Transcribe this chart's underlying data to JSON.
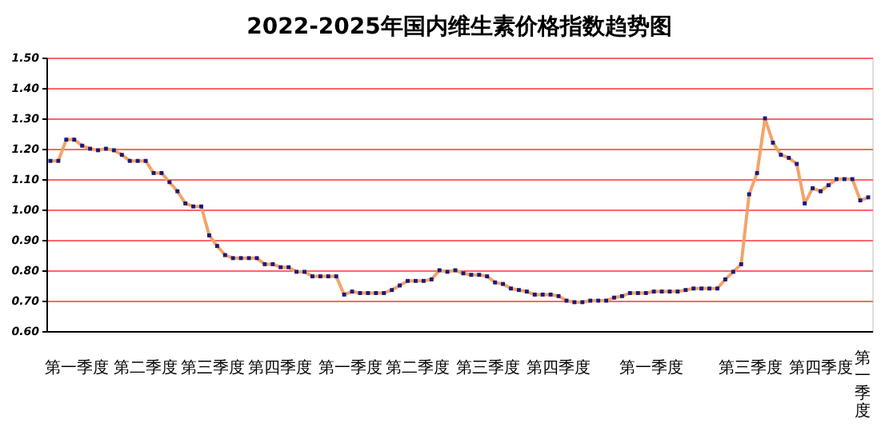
{
  "chart_data": {
    "type": "line",
    "title": "2022-2025年国内维生素价格指数趋势图",
    "categories": [
      null,
      null,
      null,
      null,
      null,
      null,
      null,
      null,
      null,
      null,
      null,
      null,
      null,
      null,
      null,
      null,
      null,
      null,
      null,
      null,
      null,
      null,
      null,
      null,
      null,
      null,
      null,
      null,
      null,
      null,
      null,
      null,
      null,
      null,
      null,
      null,
      null,
      null,
      null,
      null,
      null,
      null,
      null,
      null,
      null,
      null,
      null,
      null,
      null,
      null,
      null,
      null,
      null,
      null,
      null,
      null,
      null,
      null,
      null,
      null,
      null,
      null,
      null,
      null,
      null,
      null,
      null,
      null,
      null,
      null,
      null,
      null,
      null,
      null,
      null,
      null,
      null,
      null,
      null,
      null,
      null,
      null,
      null,
      null,
      null,
      null,
      null,
      null,
      null,
      null,
      null,
      null,
      null,
      null,
      null,
      null,
      null,
      null,
      null,
      null,
      null,
      null,
      null,
      null
    ],
    "series": [
      {
        "color": "#f4a46a",
        "values": [
          1.16,
          1.16,
          1.23,
          1.23,
          1.21,
          1.2,
          1.195,
          1.2,
          1.195,
          1.18,
          1.16,
          1.16,
          1.16,
          1.12,
          1.12,
          1.09,
          1.06,
          1.02,
          1.01,
          1.01,
          0.915,
          0.88,
          0.85,
          0.84,
          0.84,
          0.84,
          0.84,
          0.82,
          0.82,
          0.81,
          0.81,
          0.795,
          0.795,
          0.78,
          0.78,
          0.78,
          0.78,
          0.72,
          0.73,
          0.725,
          0.725,
          0.725,
          0.725,
          0.735,
          0.75,
          0.765,
          0.765,
          0.765,
          0.77,
          0.8,
          0.795,
          0.8,
          0.79,
          0.785,
          0.785,
          0.78,
          0.76,
          0.755,
          0.74,
          0.735,
          0.73,
          0.72,
          0.72,
          0.72,
          0.715,
          0.7,
          0.695,
          0.695,
          0.7,
          0.7,
          0.7,
          0.71,
          0.715,
          0.725,
          0.725,
          0.725,
          0.73,
          0.73,
          0.73,
          0.73,
          0.735,
          0.74,
          0.74,
          0.74,
          0.74,
          0.77,
          0.795,
          0.82,
          1.05,
          1.12,
          1.3,
          1.22,
          1.18,
          1.17,
          1.15,
          1.02,
          1.07,
          1.06,
          1.08,
          1.1,
          1.1,
          1.1,
          1.03,
          1.04
        ]
      }
    ],
    "marker": "square",
    "ylim": [
      0.6,
      1.5
    ],
    "yticks": [
      {
        "value": 0.6,
        "label": "0.60"
      },
      {
        "value": 0.7,
        "label": "0.70"
      },
      {
        "value": 0.8,
        "label": "0.80"
      },
      {
        "value": 0.9,
        "label": "0.90"
      },
      {
        "value": 1.0,
        "label": "1.00"
      },
      {
        "value": 1.1,
        "label": "1.10"
      },
      {
        "value": 1.2,
        "label": "1.20"
      },
      {
        "value": 1.3,
        "label": "1.30"
      },
      {
        "value": 1.4,
        "label": "1.40"
      },
      {
        "value": 1.5,
        "label": "1.50"
      }
    ],
    "grid": "y",
    "annotations": [
      "第一季度",
      "第二季度",
      "第三季度",
      "第四季度",
      "第一季度",
      "第二季度",
      "第三季度",
      "第四季度",
      "第一季度",
      "第三季度",
      "第四季度",
      "第一季度"
    ]
  }
}
